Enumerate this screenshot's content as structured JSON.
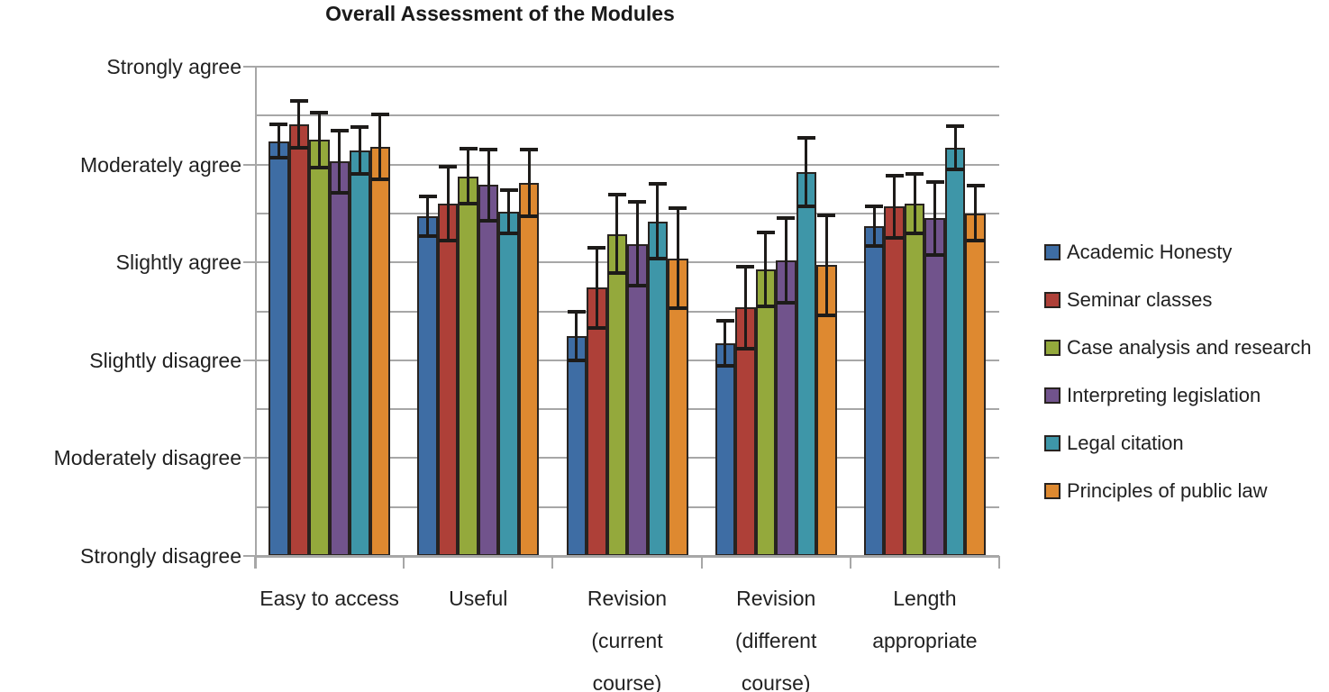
{
  "chart_data": {
    "type": "bar",
    "title": "Overall Assessment of the Modules",
    "categories": [
      "Easy to access",
      "Useful",
      "Revision (current course)",
      "Revision (different course)",
      "Length appropriate"
    ],
    "category_label_lines": [
      [
        "Easy to access"
      ],
      [
        "Useful"
      ],
      [
        "Revision",
        "(current",
        "course)"
      ],
      [
        "Revision",
        "(different",
        "course)"
      ],
      [
        "Length",
        "appropriate"
      ]
    ],
    "y_tick_labels": [
      "Strongly disagree",
      "Moderately disagree",
      "Slightly disagree",
      "Slightly agree",
      "Moderately agree",
      "Strongly agree"
    ],
    "y_axis": {
      "min": 1,
      "max": 6,
      "major_step": 1,
      "gridline_step": 0.5
    },
    "grid": true,
    "error_bars": true,
    "legend_position": "right",
    "series": [
      {
        "name": "Academic Honesty",
        "color": "#3E6DA4",
        "values": [
          5.24,
          4.47,
          3.25,
          3.17,
          4.37
        ],
        "errors": [
          0.17,
          0.2,
          0.25,
          0.23,
          0.2
        ]
      },
      {
        "name": "Seminar classes",
        "color": "#AE4038",
        "values": [
          5.41,
          4.6,
          3.74,
          3.54,
          4.57
        ],
        "errors": [
          0.24,
          0.38,
          0.41,
          0.42,
          0.32
        ]
      },
      {
        "name": "Case analysis and research",
        "color": "#94A93C",
        "values": [
          5.25,
          4.88,
          4.29,
          3.93,
          4.6
        ],
        "errors": [
          0.28,
          0.28,
          0.4,
          0.38,
          0.3
        ]
      },
      {
        "name": "Interpreting legislation",
        "color": "#71538C",
        "values": [
          5.03,
          4.79,
          4.19,
          4.02,
          4.45
        ],
        "errors": [
          0.32,
          0.36,
          0.43,
          0.43,
          0.37
        ]
      },
      {
        "name": "Legal citation",
        "color": "#3E96A8",
        "values": [
          5.14,
          4.52,
          4.42,
          4.92,
          5.17
        ],
        "errors": [
          0.24,
          0.22,
          0.38,
          0.35,
          0.22
        ]
      },
      {
        "name": "Principles of public law",
        "color": "#DE8930",
        "values": [
          5.18,
          4.81,
          4.04,
          3.97,
          4.5
        ],
        "errors": [
          0.33,
          0.34,
          0.51,
          0.51,
          0.28
        ]
      }
    ],
    "colors": {
      "gridline": "#A7A7A7",
      "axis": "#A7A7A7",
      "bar_border": "#282320",
      "error_bar": "#1D1B19",
      "text": "#212121"
    }
  }
}
